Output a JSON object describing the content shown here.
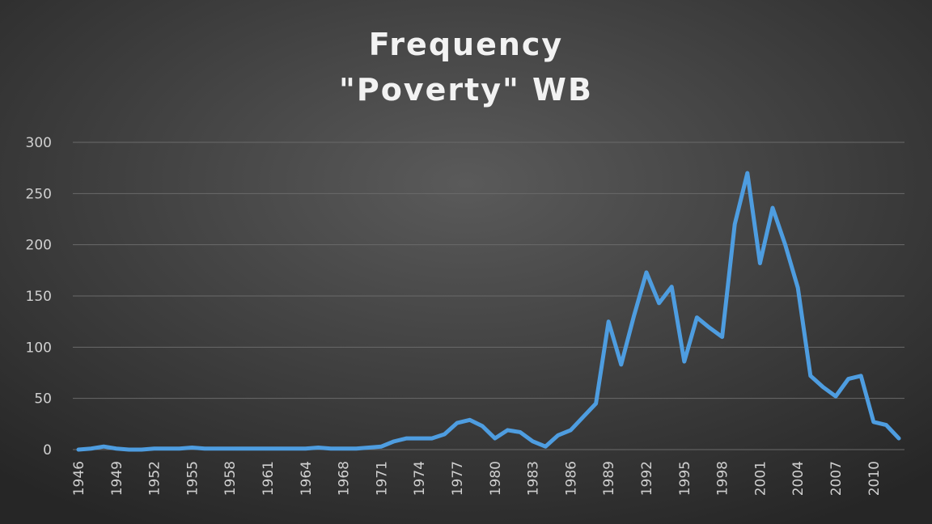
{
  "chart_data": {
    "type": "line",
    "title": [
      "Frequency",
      "\"Poverty\" WB"
    ],
    "categories": [
      "1946",
      null,
      null,
      "1949",
      null,
      null,
      "1952",
      null,
      null,
      "1955",
      null,
      null,
      "1958",
      null,
      null,
      "1961",
      null,
      null,
      "1964",
      null,
      null,
      "1968",
      null,
      null,
      "1971",
      null,
      null,
      "1974",
      null,
      null,
      "1977",
      null,
      null,
      "1980",
      null,
      null,
      "1983",
      null,
      null,
      "1986",
      null,
      null,
      "1989",
      null,
      null,
      "1992",
      null,
      null,
      "1995",
      null,
      null,
      "1998",
      null,
      null,
      "2001",
      null,
      null,
      "2004",
      null,
      null,
      "2007",
      null,
      null,
      "2010",
      null,
      null
    ],
    "series": [
      {
        "name": null,
        "color": "#4e9de0",
        "values": [
          0,
          1,
          3,
          1,
          0,
          0,
          1,
          1,
          1,
          2,
          1,
          1,
          1,
          1,
          1,
          1,
          1,
          1,
          1,
          2,
          1,
          1,
          1,
          2,
          3,
          8,
          11,
          11,
          11,
          15,
          26,
          29,
          23,
          11,
          19,
          17,
          8,
          3,
          14,
          19,
          32,
          45,
          125,
          83,
          130,
          173,
          143,
          159,
          86,
          129,
          119,
          110,
          220,
          270,
          182,
          236,
          200,
          158,
          72,
          61,
          52,
          69,
          72,
          27,
          24,
          11
        ]
      }
    ],
    "ylim": [
      0,
      300
    ],
    "yticks": [
      0,
      50,
      100,
      150,
      200,
      250,
      300
    ],
    "grid": true
  }
}
